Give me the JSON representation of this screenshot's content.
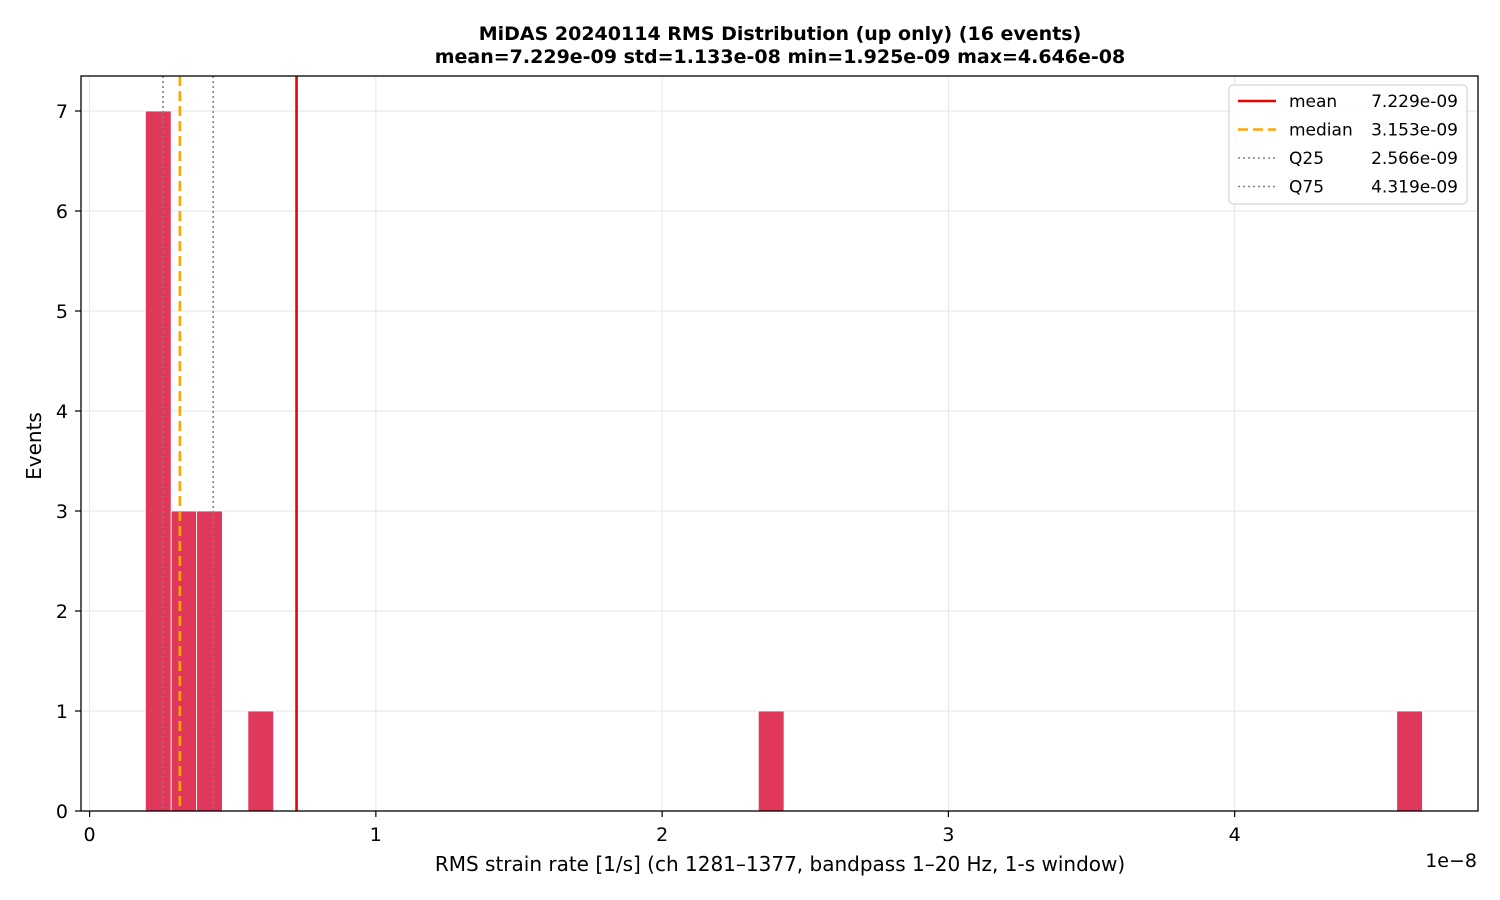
{
  "chart_data": {
    "type": "bar",
    "title_line1": "MiDAS 20240114  RMS Distribution  (up only)  (16 events)",
    "title_line2": "mean=7.229e-09  std=1.133e-08  min=1.925e-09  max=4.646e-08",
    "xlabel": "RMS strain rate [1/s]  (ch 1281–1377, bandpass 1–20 Hz, 1-s window)",
    "ylabel": "Events",
    "x_offset_label": "1e−8",
    "xlim": [
      -0.03,
      4.85
    ],
    "ylim": [
      0,
      7.35
    ],
    "grid": true,
    "legend_placement": "top-right",
    "x_ticks": [
      {
        "value": 0,
        "label": "0"
      },
      {
        "value": 1,
        "label": "1"
      },
      {
        "value": 2,
        "label": "2"
      },
      {
        "value": 3,
        "label": "3"
      },
      {
        "value": 4,
        "label": "4"
      }
    ],
    "y_ticks": [
      {
        "value": 0,
        "label": "0"
      },
      {
        "value": 1,
        "label": "1"
      },
      {
        "value": 2,
        "label": "2"
      },
      {
        "value": 3,
        "label": "3"
      },
      {
        "value": 4,
        "label": "4"
      },
      {
        "value": 5,
        "label": "5"
      },
      {
        "value": 6,
        "label": "6"
      },
      {
        "value": 7,
        "label": "7"
      }
    ],
    "bar_color": "#e0385a",
    "bars": [
      {
        "x0": 0.195,
        "x1": 0.285,
        "count": 7
      },
      {
        "x0": 0.285,
        "x1": 0.374,
        "count": 3
      },
      {
        "x0": 0.374,
        "x1": 0.464,
        "count": 3
      },
      {
        "x0": 0.553,
        "x1": 0.643,
        "count": 1
      },
      {
        "x0": 2.336,
        "x1": 2.426,
        "count": 1
      },
      {
        "x0": 4.566,
        "x1": 4.656,
        "count": 1
      }
    ],
    "reference_lines": [
      {
        "key": "mean",
        "legend_name": "mean",
        "legend_value": "7.229e-09",
        "x": 0.7229,
        "color": "#ee0000",
        "style": "solid"
      },
      {
        "key": "median",
        "legend_name": "median",
        "legend_value": "3.153e-09",
        "x": 0.3153,
        "color": "#ffa500",
        "style": "dashed"
      },
      {
        "key": "q25",
        "legend_name": "Q25",
        "legend_value": "2.566e-09",
        "x": 0.2566,
        "color": "#808080",
        "style": "dotted"
      },
      {
        "key": "q75",
        "legend_name": "Q75",
        "legend_value": "4.319e-09",
        "x": 0.4319,
        "color": "#808080",
        "style": "dotted"
      }
    ]
  }
}
